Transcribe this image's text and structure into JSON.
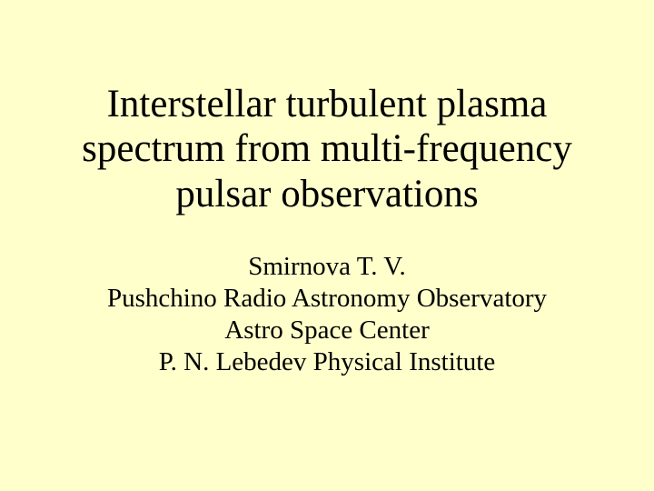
{
  "slide": {
    "background_color": "#ffffcc",
    "text_color": "#000000",
    "font_family": "Times New Roman",
    "title": {
      "text": "Interstellar turbulent plasma spectrum from multi-frequency pulsar observations",
      "fontsize_pt": 43,
      "weight": "normal",
      "align": "center"
    },
    "authors": {
      "fontsize_pt": 29,
      "align": "center",
      "lines": [
        "Smirnova T. V.",
        "Pushchino Radio Astronomy Observatory",
        "Astro Space Center",
        "P. N. Lebedev Physical Institute"
      ]
    }
  }
}
